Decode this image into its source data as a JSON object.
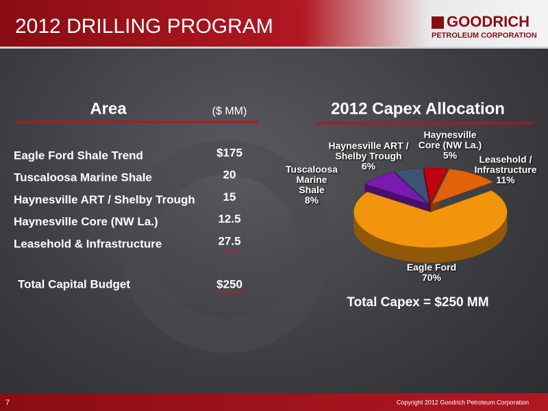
{
  "header": {
    "title": "2012 DRILLING PROGRAM",
    "logo": "GOODRICH",
    "logo_sub": "PETROLEUM CORPORATION"
  },
  "table": {
    "title": "Area",
    "unit": "($ MM)",
    "rows": [
      [
        "Eagle Ford Shale Trend",
        "$175"
      ],
      [
        "Tuscaloosa Marine Shale",
        "20"
      ],
      [
        "Haynesville ART / Shelby Trough",
        "15"
      ],
      [
        "Haynesville Core (NW La.)",
        "12.5"
      ],
      [
        "Leasehold & Infrastructure",
        "27.5"
      ]
    ],
    "total": [
      "Total Capital Budget",
      "$250"
    ]
  },
  "chart_data": {
    "type": "pie",
    "title": "2012 Capex Allocation",
    "categories": [
      "Haynesville ART / Shelby Trough",
      "Haynesville Core (NW La.)",
      "Leasehold / Infrastructure",
      "Eagle Ford",
      "Tuscaloosa Marine Shale"
    ],
    "values": [
      6,
      5,
      11,
      70,
      8
    ],
    "value_labels": [
      "6%",
      "5%",
      "11%",
      "70%",
      "8%"
    ],
    "colors": [
      "#3b5476",
      "#c2000f",
      "#e2620a",
      "#f2940c",
      "#7a1ab2"
    ],
    "annotation": "Total Capex = $250 MM"
  },
  "footer": {
    "page": "7",
    "copyright": "Copyright 2012 Goodrich Petroleum Corporation"
  }
}
